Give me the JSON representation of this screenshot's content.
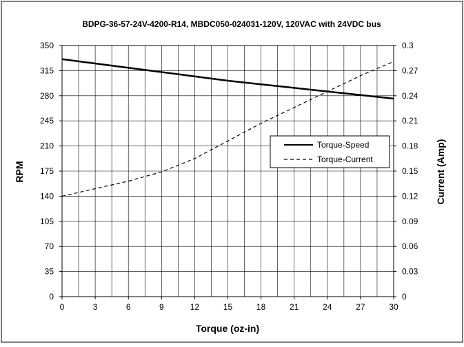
{
  "chart_data": {
    "type": "line",
    "title": "BDPG-36-57-24V-4200-R14, MBDC050-024031-120V, 120VAC with 24VDC bus",
    "xlabel": "Torque (oz-in)",
    "ylabel": "RPM",
    "y2label": "Current (Amp)",
    "xlim": [
      0,
      30
    ],
    "ylim": [
      0,
      350
    ],
    "y2lim": [
      0,
      0.3
    ],
    "x_ticks": [
      "0",
      "3",
      "6",
      "9",
      "12",
      "15",
      "18",
      "21",
      "24",
      "27",
      "30"
    ],
    "y_ticks": [
      "0",
      "35",
      "70",
      "105",
      "140",
      "175",
      "210",
      "245",
      "280",
      "315",
      "350"
    ],
    "y2_ticks": [
      "0",
      "0.03",
      "0.06",
      "0.09",
      "0.12",
      "0.15",
      "0.18",
      "0.21",
      "0.24",
      "0.27",
      "0.3"
    ],
    "grid": true,
    "legend_position": "center-right",
    "series": [
      {
        "name": "Torque-Speed",
        "axis": "left",
        "style": "solid",
        "x": [
          0,
          3,
          6,
          9,
          12,
          15,
          18,
          21,
          24,
          27,
          30
        ],
        "values": [
          331,
          325,
          319,
          313,
          307,
          301,
          296,
          291,
          286,
          281,
          276
        ]
      },
      {
        "name": "Torque-Current",
        "axis": "right",
        "style": "dashed",
        "x": [
          0,
          3,
          6,
          9,
          12,
          15,
          18,
          21,
          24,
          27,
          30
        ],
        "values": [
          0.12,
          0.129,
          0.138,
          0.149,
          0.165,
          0.186,
          0.207,
          0.226,
          0.245,
          0.264,
          0.281
        ]
      }
    ]
  }
}
